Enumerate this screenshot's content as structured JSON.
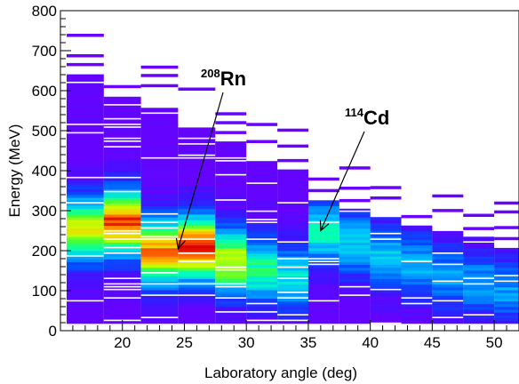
{
  "chart_data": {
    "type": "heatmap",
    "xlabel": "Laboratory angle (deg)",
    "ylabel": "Energy (MeV)",
    "xlim": [
      15,
      52
    ],
    "ylim": [
      0,
      800
    ],
    "x_ticks": [
      "20",
      "25",
      "30",
      "35",
      "40",
      "45",
      "50"
    ],
    "y_ticks": [
      "0",
      "100",
      "200",
      "300",
      "400",
      "500",
      "600",
      "700",
      "800"
    ],
    "bins": [
      {
        "x0": 15.5,
        "x1": 18.5,
        "ymax": 640,
        "peak": 250,
        "inten": 0.78
      },
      {
        "x0": 18.5,
        "x1": 21.5,
        "ymax": 585,
        "peak": 265,
        "inten": 0.95
      },
      {
        "x0": 21.5,
        "x1": 24.5,
        "ymax": 555,
        "peak": 195,
        "inten": 0.92
      },
      {
        "x0": 24.5,
        "x1": 27.5,
        "ymax": 505,
        "peak": 205,
        "inten": 0.97
      },
      {
        "x0": 27.5,
        "x1": 30.0,
        "ymax": 470,
        "peak": 170,
        "inten": 0.8
      },
      {
        "x0": 30.0,
        "x1": 32.5,
        "ymax": 420,
        "peak": 150,
        "inten": 0.62
      },
      {
        "x0": 32.5,
        "x1": 35.0,
        "ymax": 400,
        "peak": 130,
        "inten": 0.52
      },
      {
        "x0": 35.0,
        "x1": 37.5,
        "ymax": 325,
        "peak": 240,
        "inten": 0.55
      },
      {
        "x0": 37.5,
        "x1": 40.0,
        "ymax": 300,
        "peak": 215,
        "inten": 0.48
      },
      {
        "x0": 40.0,
        "x1": 42.5,
        "ymax": 280,
        "peak": 185,
        "inten": 0.46
      },
      {
        "x0": 42.5,
        "x1": 45.0,
        "ymax": 260,
        "peak": 160,
        "inten": 0.44
      },
      {
        "x0": 45.0,
        "x1": 47.5,
        "ymax": 245,
        "peak": 135,
        "inten": 0.42
      },
      {
        "x0": 47.5,
        "x1": 50.0,
        "ymax": 230,
        "peak": 115,
        "inten": 0.4
      },
      {
        "x0": 50.0,
        "x1": 52.0,
        "ymax": 205,
        "peak": 100,
        "inten": 0.4
      }
    ],
    "annotations": [
      {
        "mass": "208",
        "element": "Rn",
        "target_x": 24.5,
        "target_y": 205
      },
      {
        "mass": "114",
        "element": "Cd",
        "target_x": 36.0,
        "target_y": 250
      }
    ]
  }
}
